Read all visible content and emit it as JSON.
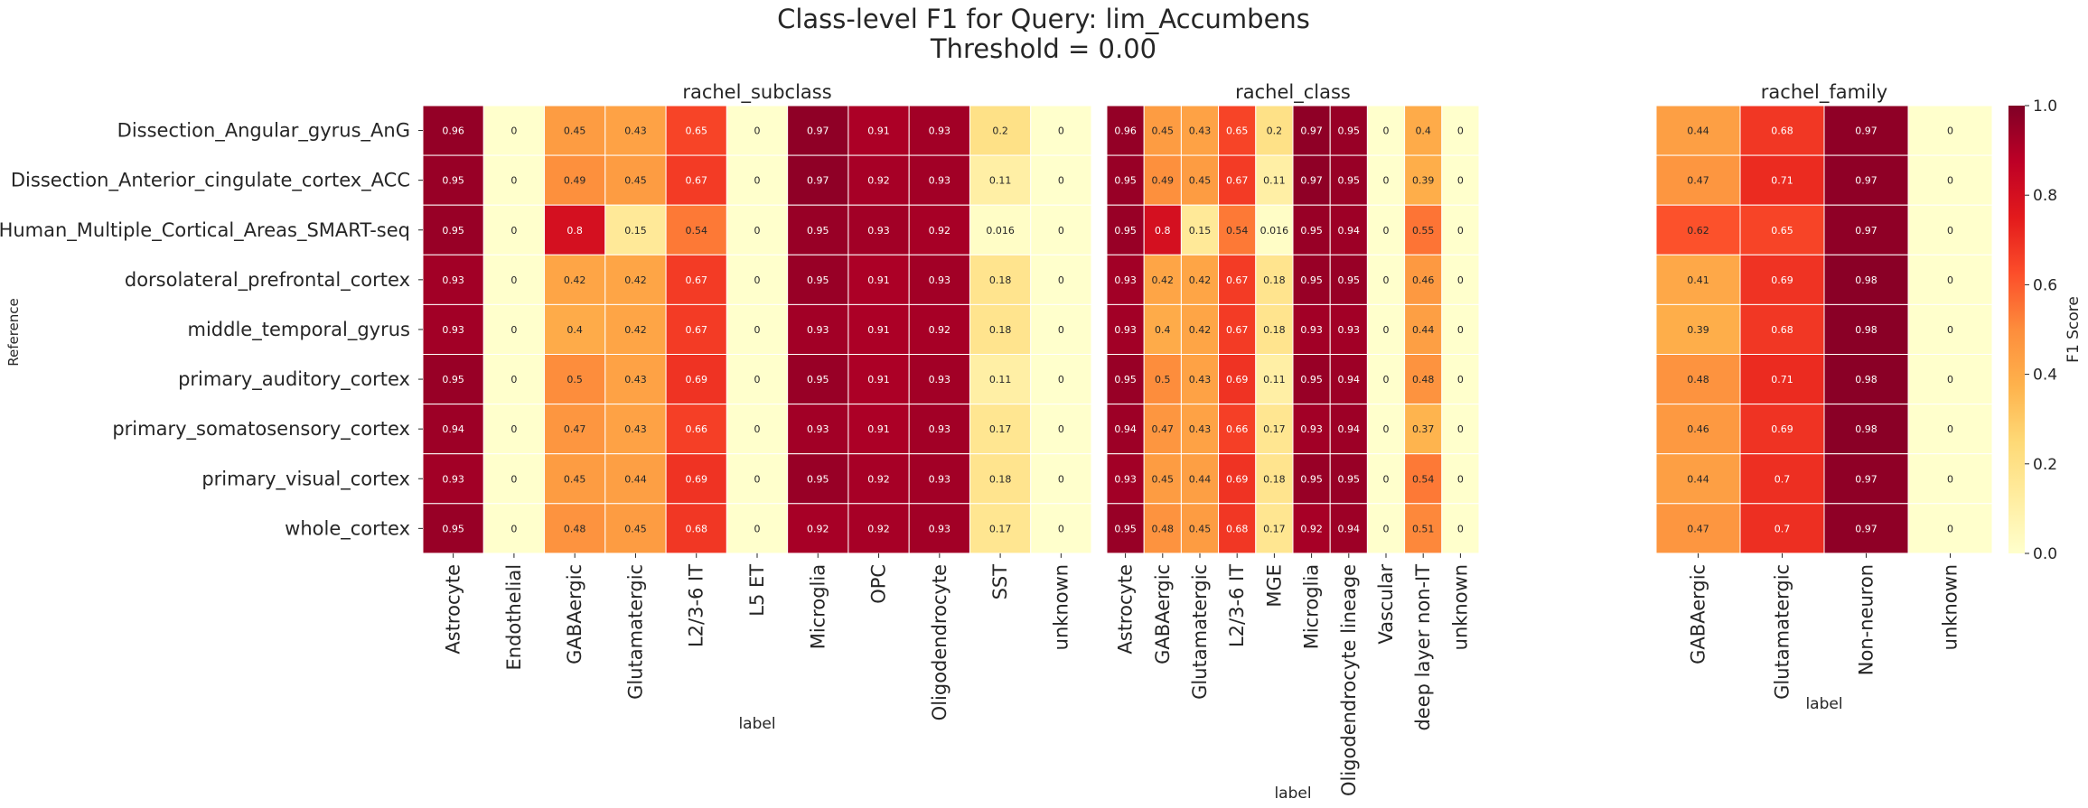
{
  "title_line1": "Class-level F1 for Query: lim_Accumbens",
  "title_line2": "Threshold = 0.00",
  "ylabel": "Reference",
  "colorbar": {
    "label": "F1 Score",
    "ticks": [
      "0.0",
      "0.2",
      "0.4",
      "0.6",
      "0.8",
      "1.0"
    ],
    "colormap": "YlOrRd",
    "vmin": 0,
    "vmax": 1
  },
  "chart_data": {
    "type": "heatmap",
    "rows": [
      "Dissection_Angular_gyrus_AnG",
      "Dissection_Anterior_cingulate_cortex_ACC",
      "Human_Multiple_Cortical_Areas_SMART-seq",
      "dorsolateral_prefrontal_cortex",
      "middle_temporal_gyrus",
      "primary_auditory_cortex",
      "primary_somatosensory_cortex",
      "primary_visual_cortex",
      "whole_cortex"
    ],
    "panels": [
      {
        "title": "rachel_subclass",
        "xlabel": "label",
        "columns": [
          "Astrocyte",
          "Endothelial",
          "GABAergic",
          "Glutamatergic",
          "L2/3-6 IT",
          "L5 ET",
          "Microglia",
          "OPC",
          "Oligodendrocyte",
          "SST",
          "unknown"
        ],
        "values": [
          [
            0.96,
            0,
            0.45,
            0.43,
            0.65,
            0,
            0.97,
            0.91,
            0.93,
            0.2,
            0
          ],
          [
            0.95,
            0,
            0.49,
            0.45,
            0.67,
            0,
            0.97,
            0.92,
            0.93,
            0.11,
            0
          ],
          [
            0.95,
            0,
            0.8,
            0.15,
            0.54,
            0,
            0.95,
            0.93,
            0.92,
            0.016,
            0
          ],
          [
            0.93,
            0,
            0.42,
            0.42,
            0.67,
            0,
            0.95,
            0.91,
            0.93,
            0.18,
            0
          ],
          [
            0.93,
            0,
            0.4,
            0.42,
            0.67,
            0,
            0.93,
            0.91,
            0.92,
            0.18,
            0
          ],
          [
            0.95,
            0,
            0.5,
            0.43,
            0.69,
            0,
            0.95,
            0.91,
            0.93,
            0.11,
            0
          ],
          [
            0.94,
            0,
            0.47,
            0.43,
            0.66,
            0,
            0.93,
            0.91,
            0.93,
            0.17,
            0
          ],
          [
            0.93,
            0,
            0.45,
            0.44,
            0.69,
            0,
            0.95,
            0.92,
            0.93,
            0.18,
            0
          ],
          [
            0.95,
            0,
            0.48,
            0.45,
            0.68,
            0,
            0.92,
            0.92,
            0.93,
            0.17,
            0
          ]
        ]
      },
      {
        "title": "rachel_class",
        "xlabel": "label",
        "columns": [
          "Astrocyte",
          "GABAergic",
          "Glutamatergic",
          "L2/3-6 IT",
          "MGE",
          "Microglia",
          "Oligodendrocyte lineage",
          "Vascular",
          "deep layer non-IT",
          "unknown"
        ],
        "values": [
          [
            0.96,
            0.45,
            0.43,
            0.65,
            0.2,
            0.97,
            0.95,
            0,
            0.4,
            0
          ],
          [
            0.95,
            0.49,
            0.45,
            0.67,
            0.11,
            0.97,
            0.95,
            0,
            0.39,
            0
          ],
          [
            0.95,
            0.8,
            0.15,
            0.54,
            0.016,
            0.95,
            0.94,
            0,
            0.55,
            0
          ],
          [
            0.93,
            0.42,
            0.42,
            0.67,
            0.18,
            0.95,
            0.95,
            0,
            0.46,
            0
          ],
          [
            0.93,
            0.4,
            0.42,
            0.67,
            0.18,
            0.93,
            0.93,
            0,
            0.44,
            0
          ],
          [
            0.95,
            0.5,
            0.43,
            0.69,
            0.11,
            0.95,
            0.94,
            0,
            0.48,
            0
          ],
          [
            0.94,
            0.47,
            0.43,
            0.66,
            0.17,
            0.93,
            0.94,
            0,
            0.37,
            0
          ],
          [
            0.93,
            0.45,
            0.44,
            0.69,
            0.18,
            0.95,
            0.95,
            0,
            0.54,
            0
          ],
          [
            0.95,
            0.48,
            0.45,
            0.68,
            0.17,
            0.92,
            0.94,
            0,
            0.51,
            0
          ]
        ]
      },
      {
        "title": "rachel_family",
        "xlabel": "label",
        "columns": [
          "GABAergic",
          "Glutamatergic",
          "Non-neuron",
          "unknown"
        ],
        "values": [
          [
            0.44,
            0.68,
            0.97,
            0
          ],
          [
            0.47,
            0.71,
            0.97,
            0
          ],
          [
            0.62,
            0.65,
            0.97,
            0
          ],
          [
            0.41,
            0.69,
            0.98,
            0
          ],
          [
            0.39,
            0.68,
            0.98,
            0
          ],
          [
            0.48,
            0.71,
            0.98,
            0
          ],
          [
            0.46,
            0.69,
            0.98,
            0
          ],
          [
            0.44,
            0.7,
            0.97,
            0
          ],
          [
            0.47,
            0.7,
            0.97,
            0
          ]
        ]
      }
    ]
  }
}
